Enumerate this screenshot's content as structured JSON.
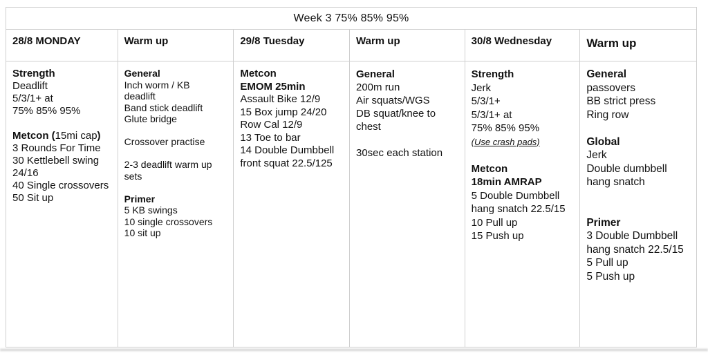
{
  "title": "Week 3 75% 85% 95%",
  "colors": {
    "border": "#cfcfcf",
    "text": "#111111",
    "background": "#ffffff"
  },
  "columns": [
    {
      "header": "28/8 MONDAY",
      "lines": [
        {
          "t": "Strength",
          "s": "b"
        },
        {
          "t": "Deadlift"
        },
        {
          "t": "5/3/1+ at"
        },
        {
          "t": "75% 85% 95%"
        },
        {
          "t": ""
        },
        {
          "parts": [
            {
              "t": "Metcon (",
              "s": "b"
            },
            {
              "t": "15mi cap"
            },
            {
              "t": ")",
              "s": "b"
            }
          ]
        },
        {
          "t": "3 Rounds For Time"
        },
        {
          "t": "30 Kettlebell swing"
        },
        {
          "t": "24/16"
        },
        {
          "t": "40 Single crossovers"
        },
        {
          "t": "50 Sit up"
        }
      ]
    },
    {
      "header": "Warm up",
      "lines": [
        {
          "t": "General",
          "s": "b"
        },
        {
          "t": "Inch worm / KB"
        },
        {
          "t": "deadlift"
        },
        {
          "t": "Band stick deadlift"
        },
        {
          "t": "Glute bridge"
        },
        {
          "t": ""
        },
        {
          "t": "Crossover practise"
        },
        {
          "t": ""
        },
        {
          "t": "2-3 deadlift warm up"
        },
        {
          "t": "sets"
        },
        {
          "t": ""
        },
        {
          "t": "Primer",
          "s": "b"
        },
        {
          "t": "5 KB swings"
        },
        {
          "t": "10 single crossovers"
        },
        {
          "t": "10 sit up"
        }
      ]
    },
    {
      "header": "29/8 Tuesday",
      "lines": [
        {
          "t": "Metcon",
          "s": "b"
        },
        {
          "t": "EMOM 25min",
          "s": "b"
        },
        {
          "t": "Assault Bike 12/9"
        },
        {
          "t": "15 Box jump 24/20"
        },
        {
          "t": "Row Cal 12/9"
        },
        {
          "t": "13 Toe to bar"
        },
        {
          "t": "14 Double Dumbbell"
        },
        {
          "t": "front squat 22.5/125"
        }
      ]
    },
    {
      "header": "Warm up",
      "lines": [
        {
          "t": "General",
          "s": "b"
        },
        {
          "t": "200m run"
        },
        {
          "t": "Air squats/WGS"
        },
        {
          "t": "DB squat/knee to"
        },
        {
          "t": "chest"
        },
        {
          "t": ""
        },
        {
          "t": "30sec each station"
        }
      ]
    },
    {
      "header": "30/8 Wednesday",
      "lines": [
        {
          "t": "Strength",
          "s": "b"
        },
        {
          "t": "Jerk"
        },
        {
          "t": "5/3/1+"
        },
        {
          "t": "5/3/1+ at"
        },
        {
          "t": "75% 85% 95%"
        },
        {
          "t": "(Use crash pads)",
          "s": "iu"
        },
        {
          "t": ""
        },
        {
          "t": "Metcon",
          "s": "b"
        },
        {
          "t": "18min AMRAP",
          "s": "b"
        },
        {
          "t": "5 Double Dumbbell"
        },
        {
          "t": "hang snatch 22.5/15"
        },
        {
          "t": "10 Pull up"
        },
        {
          "t": "15 Push up"
        }
      ]
    },
    {
      "header": "Warm up",
      "lines": [
        {
          "t": "General",
          "s": "b"
        },
        {
          "t": "passovers"
        },
        {
          "t": "BB strict press"
        },
        {
          "t": "Ring row"
        },
        {
          "t": ""
        },
        {
          "t": "Global",
          "s": "b"
        },
        {
          "t": "Jerk"
        },
        {
          "t": "Double dumbbell"
        },
        {
          "t": "hang snatch"
        },
        {
          "t": ""
        },
        {
          "t": ""
        },
        {
          "t": "Primer",
          "s": "b"
        },
        {
          "t": "3 Double Dumbbell"
        },
        {
          "t": "hang snatch 22.5/15"
        },
        {
          "t": "5 Pull up"
        },
        {
          "t": "5 Push up"
        }
      ]
    }
  ]
}
